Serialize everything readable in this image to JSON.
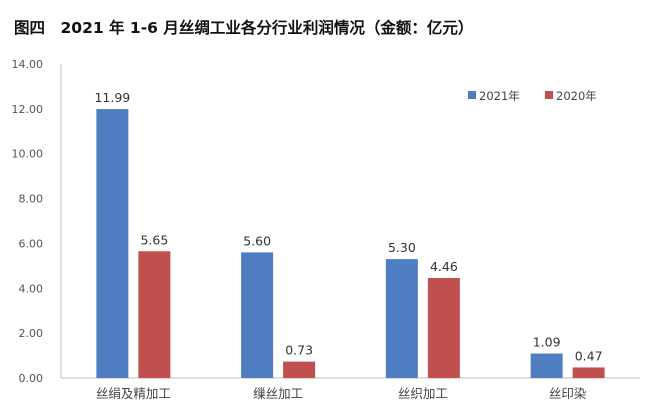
{
  "chart_data": {
    "type": "bar",
    "title": "图四　2021 年 1-6 月丝绸工业各分行业利润情况（金额：亿元）",
    "categories": [
      "丝绢及精加工",
      "缫丝加工",
      "丝织加工",
      "丝印染"
    ],
    "series": [
      {
        "name": "2021年",
        "color": "#4F7DC1",
        "values": [
          11.99,
          5.6,
          5.3,
          1.09
        ],
        "labels": [
          "11.99",
          "5.60",
          "5.30",
          "1.09"
        ]
      },
      {
        "name": "2020年",
        "color": "#C0504D",
        "values": [
          5.65,
          0.73,
          4.46,
          0.47
        ],
        "labels": [
          "5.65",
          "0.73",
          "4.46",
          "0.47"
        ]
      }
    ],
    "ylim": [
      0,
      14
    ],
    "yticks": [
      "0.00",
      "2.00",
      "4.00",
      "6.00",
      "8.00",
      "10.00",
      "12.00",
      "14.00"
    ],
    "legend": "top-right",
    "grid": false
  }
}
